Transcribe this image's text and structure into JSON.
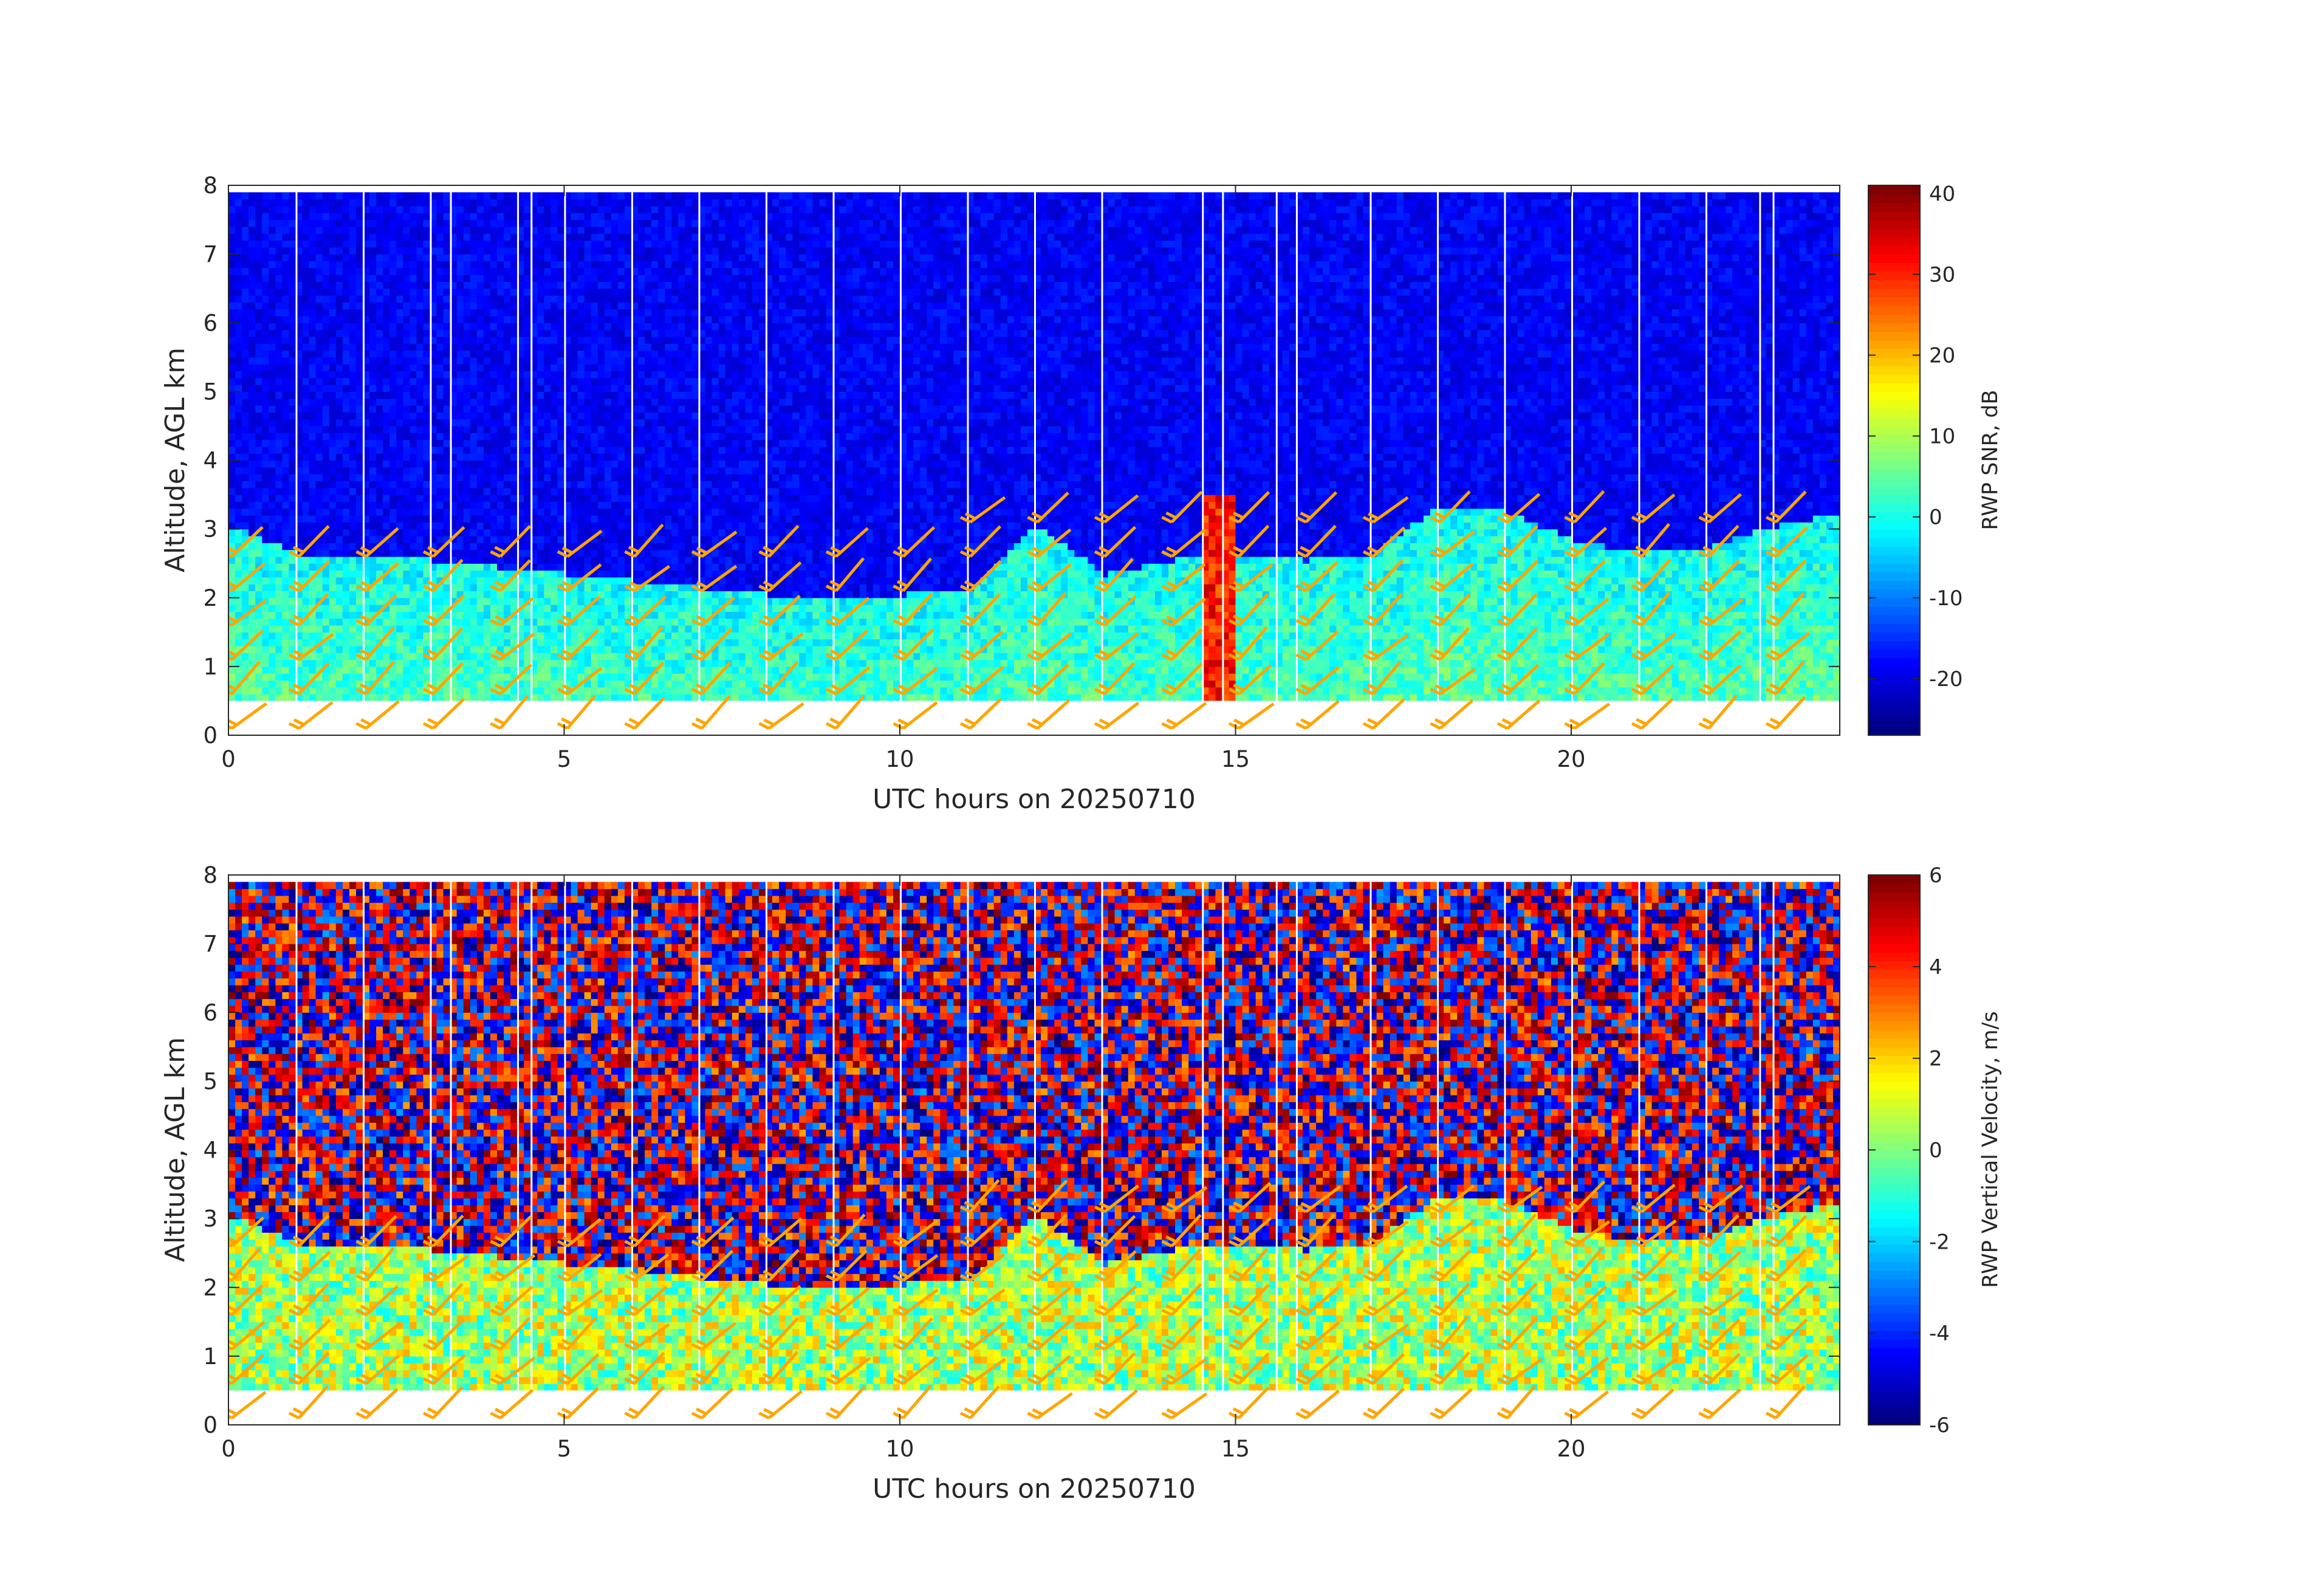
{
  "chart_data": [
    {
      "type": "heatmap",
      "panel": "top",
      "xlabel": "UTC hours on 20250710",
      "ylabel": "Altitude, AGL km",
      "colorbar_label": "RWP SNR, dB",
      "xlim": [
        0,
        24
      ],
      "ylim": [
        0,
        8
      ],
      "xticks": [
        0,
        5,
        10,
        15,
        20
      ],
      "yticks": [
        0,
        1,
        2,
        3,
        4,
        5,
        6,
        7,
        8
      ],
      "clim": [
        -27,
        41
      ],
      "colorbar_ticks": [
        -20,
        -10,
        0,
        10,
        20,
        30,
        40
      ],
      "colormap": "jet",
      "data_range_km": [
        0.5,
        7.9
      ],
      "gap_hours": [
        1.0,
        2.0,
        3.0,
        3.3,
        4.3,
        4.5,
        5.0,
        6.0,
        7.0,
        8.0,
        9.0,
        10.0,
        11.0,
        12.0,
        13.0,
        14.5,
        14.8,
        15.6,
        15.9,
        17.0,
        18.0,
        19.0,
        20.0,
        21.0,
        22.0,
        22.8,
        23.0
      ],
      "overlay": "wind barbs",
      "overlay_color": "#FFA500",
      "boundary_layer_top_km": [
        [
          0,
          3.0
        ],
        [
          1,
          2.6
        ],
        [
          2,
          2.6
        ],
        [
          3,
          2.5
        ],
        [
          4,
          2.4
        ],
        [
          5,
          2.3
        ],
        [
          6,
          2.2
        ],
        [
          7,
          2.1
        ],
        [
          8,
          2.0
        ],
        [
          9,
          2.0
        ],
        [
          10,
          2.0
        ],
        [
          11,
          2.1
        ],
        [
          12,
          3.0
        ],
        [
          13,
          2.3
        ],
        [
          14,
          2.5
        ],
        [
          15,
          2.6
        ],
        [
          16,
          2.5
        ],
        [
          17,
          2.6
        ],
        [
          18,
          3.3
        ],
        [
          19,
          3.2
        ],
        [
          20,
          2.8
        ],
        [
          21,
          2.6
        ],
        [
          22,
          2.7
        ],
        [
          23,
          3.0
        ],
        [
          24,
          3.2
        ]
      ]
    },
    {
      "type": "heatmap",
      "panel": "bottom",
      "xlabel": "UTC hours on 20250710",
      "ylabel": "Altitude, AGL km",
      "colorbar_label": "RWP Vertical Velocity, m/s",
      "xlim": [
        0,
        24
      ],
      "ylim": [
        0,
        8
      ],
      "xticks": [
        0,
        5,
        10,
        15,
        20
      ],
      "yticks": [
        0,
        1,
        2,
        3,
        4,
        5,
        6,
        7,
        8
      ],
      "clim": [
        -6,
        6
      ],
      "colorbar_ticks": [
        -6,
        -4,
        -2,
        0,
        2,
        4,
        6
      ],
      "colormap": "jet",
      "data_range_km": [
        0.5,
        7.9
      ],
      "overlay": "wind barbs",
      "overlay_color": "#FFA500"
    }
  ],
  "colors": {
    "barb": "#FFA500",
    "axis": "#262626",
    "background": "#ffffff"
  }
}
